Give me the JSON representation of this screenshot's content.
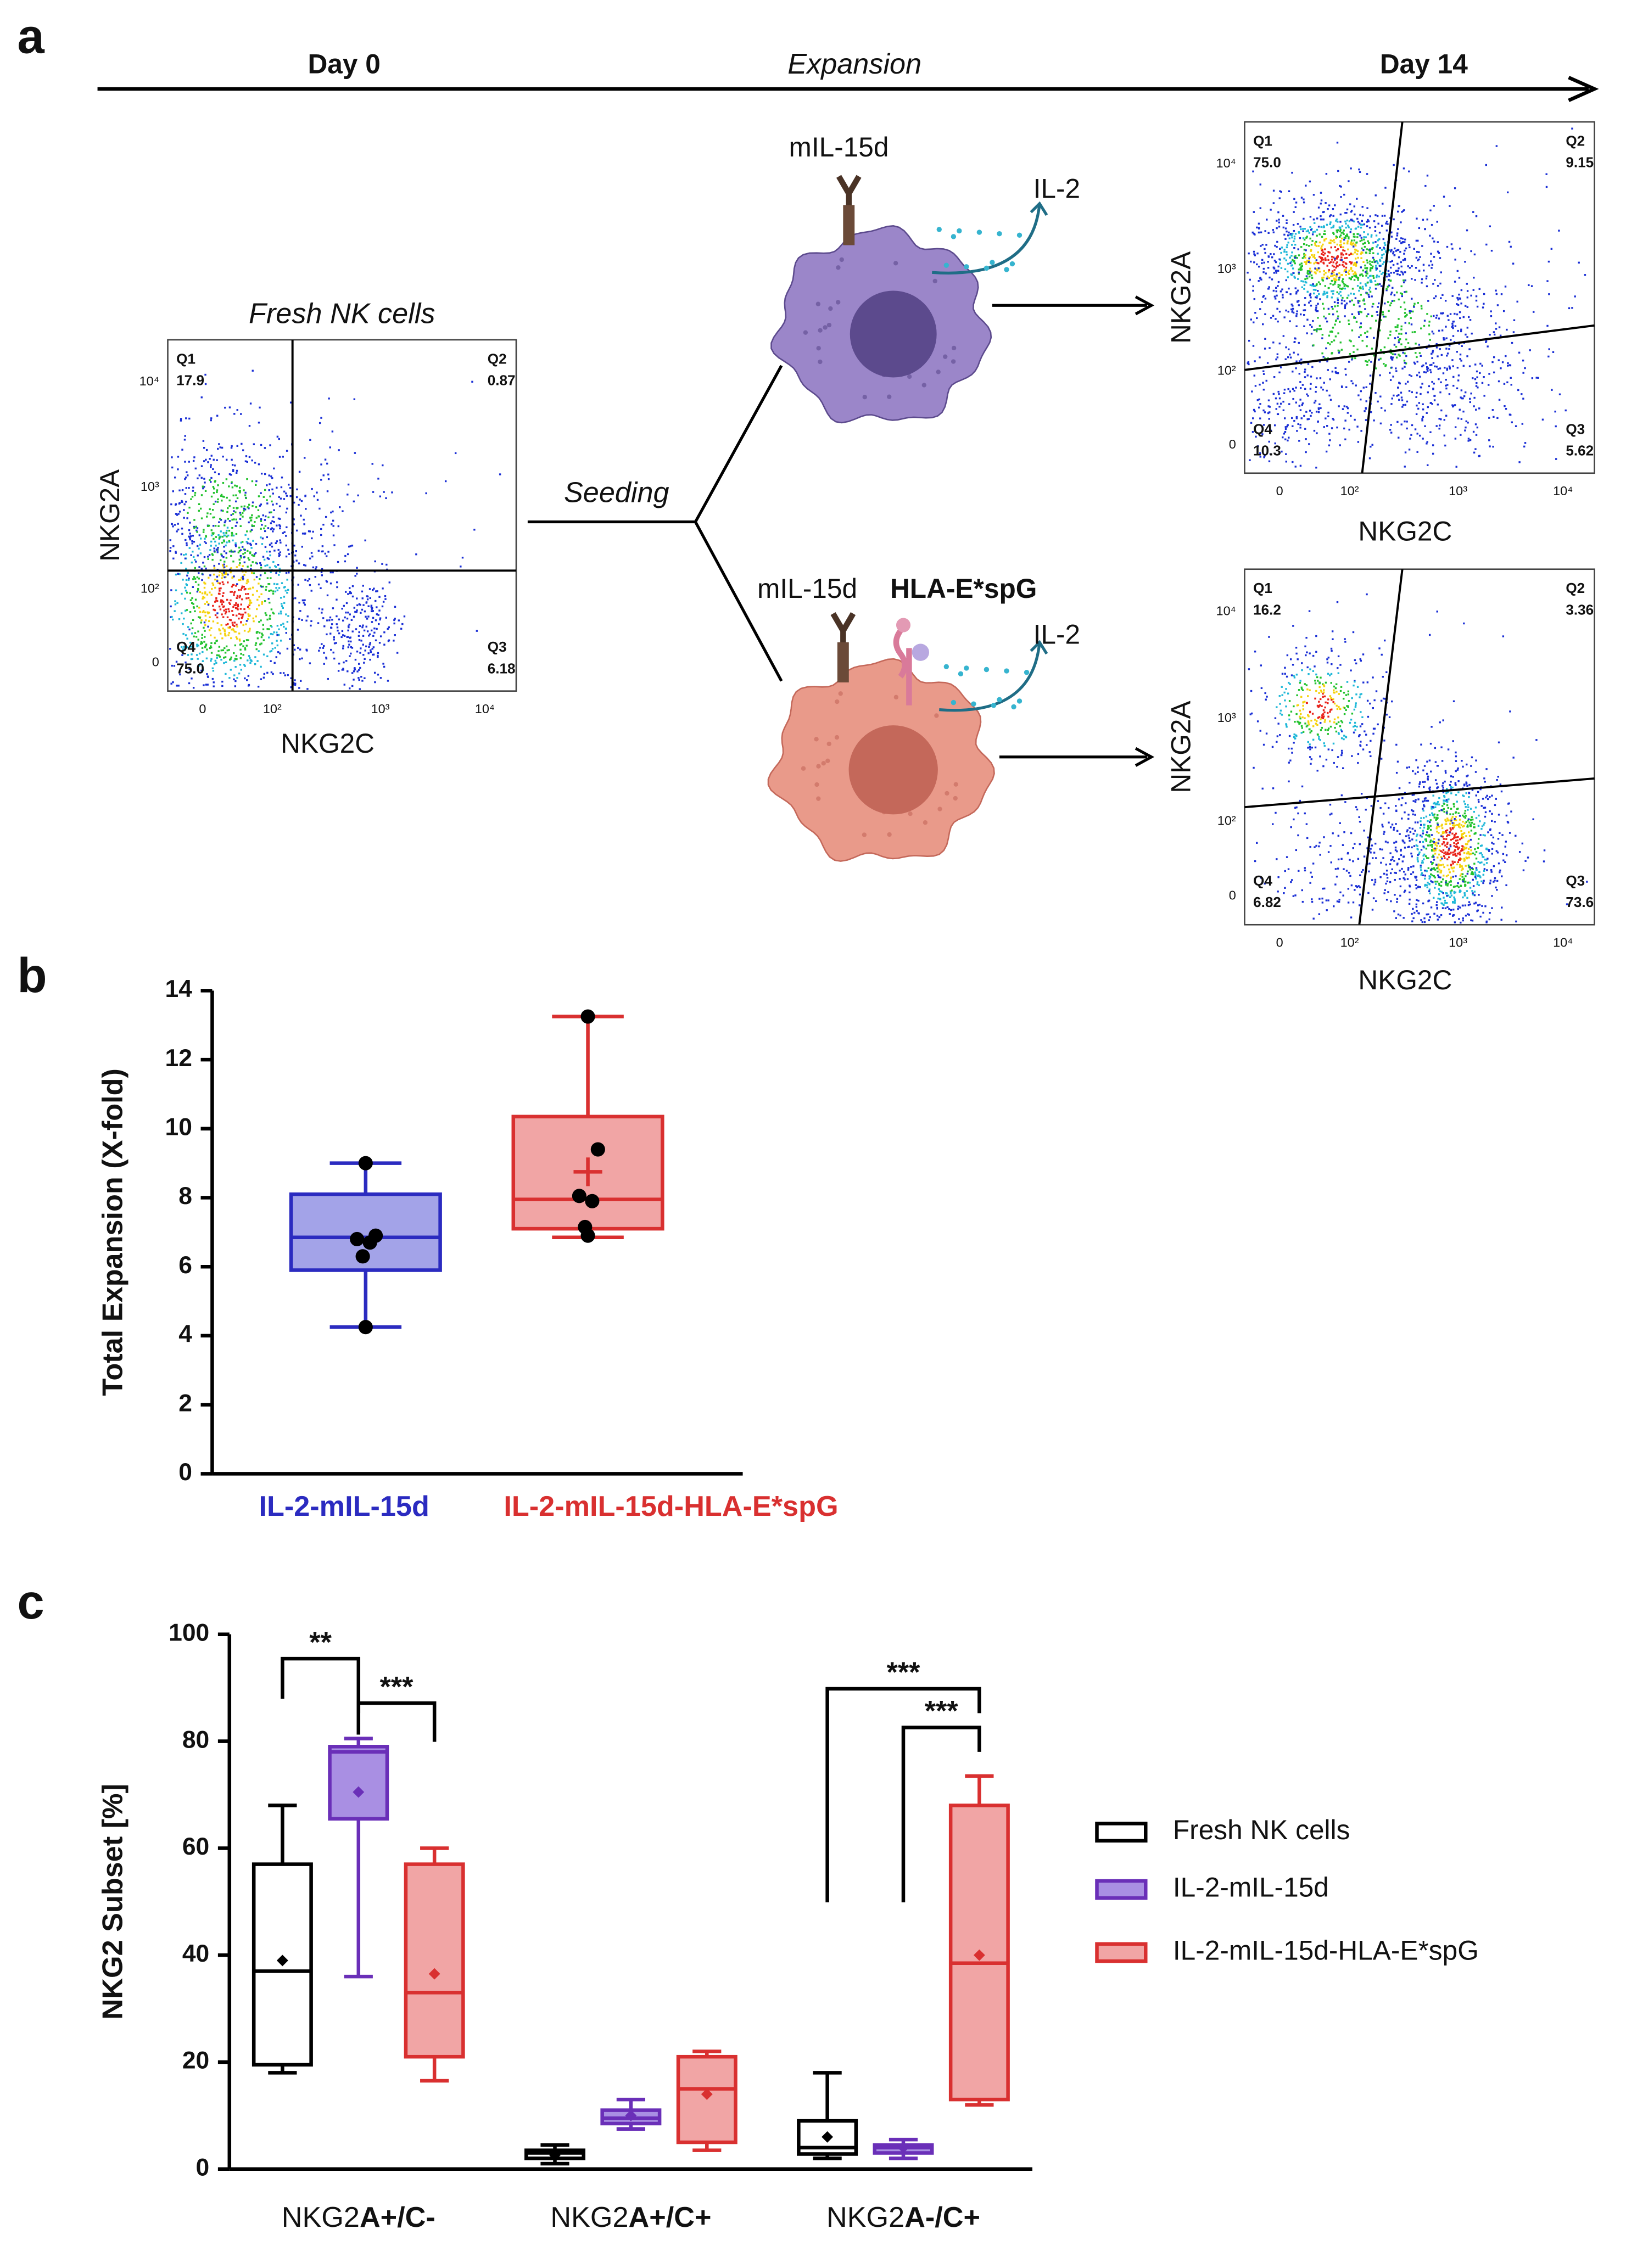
{
  "figure_a": {
    "panel": "a",
    "timeline": {
      "start": "Day 0",
      "middle": "Expansion",
      "end": "Day 14"
    },
    "seeding": "Seeding",
    "plots": [
      {
        "title": "Fresh NK cells",
        "x_label": "NKG2C",
        "y_label": "NKG2A",
        "quadrants": [
          {
            "name": "Q1",
            "value": "17.9"
          },
          {
            "name": "Q2",
            "value": "0.87"
          },
          {
            "name": "Q3",
            "value": "6.18"
          },
          {
            "name": "Q4",
            "value": "75.0"
          }
        ],
        "xticks": [
          "0",
          "10²",
          "10³",
          "10⁴"
        ],
        "yticks": [
          "10⁴",
          "10³",
          "10²",
          "0"
        ]
      },
      {
        "x_label": "NKG2C",
        "y_label": "NKG2A",
        "quadrants": [
          {
            "name": "Q1",
            "value": "75.0"
          },
          {
            "name": "Q2",
            "value": "9.15"
          },
          {
            "name": "Q3",
            "value": "5.62"
          },
          {
            "name": "Q4",
            "value": "10.3"
          }
        ],
        "xticks": [
          "0",
          "10²",
          "10³",
          "10⁴"
        ],
        "yticks": [
          "10⁴",
          "10³",
          "10²",
          "0"
        ]
      },
      {
        "x_label": "NKG2C",
        "y_label": "NKG2A",
        "quadrants": [
          {
            "name": "Q1",
            "value": "16.2"
          },
          {
            "name": "Q2",
            "value": "3.36"
          },
          {
            "name": "Q3",
            "value": "73.6"
          },
          {
            "name": "Q4",
            "value": "6.82"
          }
        ],
        "xticks": [
          "0",
          "10²",
          "10³",
          "10⁴"
        ],
        "yticks": [
          "10⁴",
          "10³",
          "10²",
          "0"
        ]
      }
    ],
    "feeders": [
      {
        "labels": [
          "mIL-15d"
        ],
        "secreted": "IL-2"
      },
      {
        "labels": [
          "mIL-15d",
          "HLA-E*spG"
        ],
        "secreted": "IL-2"
      }
    ]
  },
  "chart_data": [
    {
      "type": "box",
      "panel": "b",
      "y_label": "Total Expansion (X-fold)",
      "mean_marker": "plus",
      "categories": [
        "IL-2-mIL-15d",
        "IL-2-mIL-15d-HLA-E*spG"
      ],
      "ylim": [
        0,
        14
      ],
      "yticks": [
        0,
        2,
        4,
        6,
        8,
        10,
        12,
        14
      ],
      "boxes": [
        {
          "color": "#2b2bc0",
          "fill": "#a3a3e8",
          "min": 4.25,
          "q1": 5.9,
          "median": 6.85,
          "q3": 8.1,
          "max": 9.0,
          "points": [
            9.0,
            6.9,
            6.8,
            6.7,
            6.3,
            4.25
          ]
        },
        {
          "color": "#d93030",
          "fill": "#f1a5a5",
          "min": 6.85,
          "q1": 7.1,
          "median": 7.95,
          "q3": 10.35,
          "max": 13.25,
          "mean": 8.75,
          "points": [
            13.25,
            9.4,
            8.05,
            7.9,
            7.15,
            6.9
          ]
        }
      ]
    },
    {
      "type": "box",
      "panel": "c",
      "y_label": "NKG2 Subset [%]",
      "mean_marker": "dot",
      "categories": [
        {
          "prefix": "NKG2",
          "bold": "A+/C-"
        },
        {
          "prefix": "NKG2",
          "bold": "A+/C+"
        },
        {
          "prefix": "NKG2",
          "bold": "A-/C+"
        }
      ],
      "ylim": [
        0,
        100
      ],
      "yticks": [
        0,
        20,
        40,
        60,
        80,
        100
      ],
      "series": [
        {
          "name": "Fresh NK cells",
          "color": "#000000",
          "fill": "#ffffff",
          "boxes": [
            {
              "min": 18,
              "q1": 19.5,
              "median": 37,
              "q3": 57,
              "max": 68,
              "mean": 39
            },
            {
              "min": 1,
              "q1": 2,
              "median": 3,
              "q3": 3.5,
              "max": 4.5,
              "mean": 2.6
            },
            {
              "min": 2,
              "q1": 2.8,
              "median": 4,
              "q3": 9,
              "max": 18,
              "mean": 6
            }
          ]
        },
        {
          "name": "IL-2-mIL-15d",
          "color": "#6a2fb8",
          "fill": "#a98fe3",
          "boxes": [
            {
              "min": 36,
              "q1": 65.5,
              "median": 78,
              "q3": 79,
              "max": 80.5,
              "mean": 70.5
            },
            {
              "min": 7.5,
              "q1": 8.5,
              "median": 9.5,
              "q3": 11,
              "max": 13,
              "mean": 10
            },
            {
              "min": 2,
              "q1": 3,
              "median": 4,
              "q3": 4.5,
              "max": 5.5,
              "mean": 4
            }
          ]
        },
        {
          "name": "IL-2-mIL-15d-HLA-E*spG",
          "color": "#d93030",
          "fill": "#f1a5a5",
          "boxes": [
            {
              "min": 16.5,
              "q1": 21,
              "median": 33,
              "q3": 57,
              "max": 60,
              "mean": 36.5
            },
            {
              "min": 3.5,
              "q1": 5,
              "median": 15,
              "q3": 21,
              "max": 22,
              "mean": 14
            },
            {
              "min": 12,
              "q1": 13,
              "median": 38.5,
              "q3": 68,
              "max": 73.5,
              "mean": 40
            }
          ]
        }
      ],
      "annotations": [
        {
          "text": "**",
          "category": 0,
          "from": 0,
          "to": 1
        },
        {
          "text": "***",
          "category": 0,
          "from": 1,
          "to": 2
        },
        {
          "text": "***",
          "category": 2,
          "from": 0,
          "to": 2
        },
        {
          "text": "***",
          "category": 2,
          "from": 1,
          "to": 2
        }
      ]
    }
  ]
}
